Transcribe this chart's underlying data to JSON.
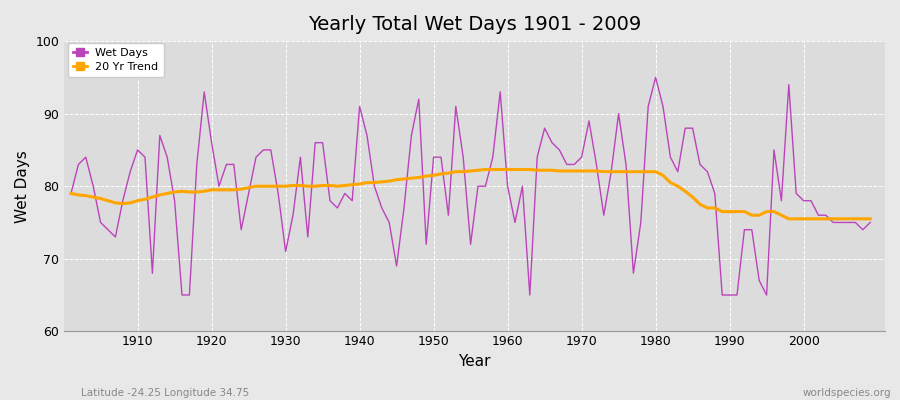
{
  "title": "Yearly Total Wet Days 1901 - 2009",
  "xlabel": "Year",
  "ylabel": "Wet Days",
  "ylim": [
    60,
    100
  ],
  "xlim": [
    1901,
    2009
  ],
  "yticks": [
    60,
    70,
    80,
    90,
    100
  ],
  "xticks": [
    1910,
    1920,
    1930,
    1940,
    1950,
    1960,
    1970,
    1980,
    1990,
    2000
  ],
  "wet_days_color": "#BB44BB",
  "trend_color": "#FFA500",
  "bg_color": "#E8E8E8",
  "plot_bg_color": "#DCDCDC",
  "legend_labels": [
    "Wet Days",
    "20 Yr Trend"
  ],
  "subtitle_left": "Latitude -24.25 Longitude 34.75",
  "subtitle_right": "worldspecies.org",
  "years": [
    1901,
    1902,
    1903,
    1904,
    1905,
    1906,
    1907,
    1908,
    1909,
    1910,
    1911,
    1912,
    1913,
    1914,
    1915,
    1916,
    1917,
    1918,
    1919,
    1920,
    1921,
    1922,
    1923,
    1924,
    1925,
    1926,
    1927,
    1928,
    1929,
    1930,
    1931,
    1932,
    1933,
    1934,
    1935,
    1936,
    1937,
    1938,
    1939,
    1940,
    1941,
    1942,
    1943,
    1944,
    1945,
    1946,
    1947,
    1948,
    1949,
    1950,
    1951,
    1952,
    1953,
    1954,
    1955,
    1956,
    1957,
    1958,
    1959,
    1960,
    1961,
    1962,
    1963,
    1964,
    1965,
    1966,
    1967,
    1968,
    1969,
    1970,
    1971,
    1972,
    1973,
    1974,
    1975,
    1976,
    1977,
    1978,
    1979,
    1980,
    1981,
    1982,
    1983,
    1984,
    1985,
    1986,
    1987,
    1988,
    1989,
    1990,
    1991,
    1992,
    1993,
    1994,
    1995,
    1996,
    1997,
    1998,
    1999,
    2000,
    2001,
    2002,
    2003,
    2004,
    2005,
    2006,
    2007,
    2008,
    2009
  ],
  "wet_days": [
    79,
    83,
    84,
    80,
    75,
    74,
    73,
    78,
    82,
    85,
    84,
    68,
    87,
    84,
    78,
    65,
    65,
    83,
    93,
    86,
    80,
    83,
    83,
    74,
    79,
    84,
    85,
    85,
    79,
    71,
    76,
    84,
    73,
    86,
    86,
    78,
    77,
    79,
    78,
    91,
    87,
    80,
    77,
    75,
    69,
    77,
    87,
    92,
    72,
    84,
    84,
    76,
    91,
    84,
    72,
    80,
    80,
    84,
    93,
    80,
    75,
    80,
    65,
    84,
    88,
    86,
    85,
    83,
    83,
    84,
    89,
    83,
    76,
    82,
    90,
    83,
    68,
    75,
    91,
    95,
    91,
    84,
    82,
    88,
    88,
    83,
    82,
    79,
    65,
    65,
    65,
    74,
    74,
    67,
    65,
    85,
    78,
    94,
    79,
    78,
    78,
    76,
    76,
    75,
    75,
    75,
    75,
    74,
    75
  ],
  "trend": [
    79.0,
    78.8,
    78.7,
    78.5,
    78.3,
    78.0,
    77.7,
    77.6,
    77.7,
    78.0,
    78.2,
    78.5,
    78.8,
    79.0,
    79.2,
    79.3,
    79.2,
    79.2,
    79.3,
    79.5,
    79.5,
    79.5,
    79.5,
    79.6,
    79.8,
    80.0,
    80.0,
    80.0,
    80.0,
    80.0,
    80.1,
    80.1,
    80.0,
    80.0,
    80.1,
    80.1,
    80.0,
    80.1,
    80.2,
    80.3,
    80.5,
    80.5,
    80.6,
    80.7,
    80.9,
    81.0,
    81.1,
    81.2,
    81.4,
    81.5,
    81.7,
    81.8,
    82.0,
    82.0,
    82.1,
    82.2,
    82.3,
    82.3,
    82.3,
    82.3,
    82.3,
    82.3,
    82.3,
    82.2,
    82.2,
    82.2,
    82.1,
    82.1,
    82.1,
    82.1,
    82.1,
    82.1,
    82.0,
    82.0,
    82.0,
    82.0,
    82.0,
    82.0,
    82.0,
    82.0,
    81.5,
    80.5,
    80.0,
    79.3,
    78.5,
    77.5,
    77.0,
    77.0,
    76.5,
    76.5,
    76.5,
    76.5,
    76.0,
    76.0,
    76.5,
    76.5,
    76.0,
    75.5,
    75.5,
    75.5,
    75.5,
    75.5,
    75.5,
    75.5,
    75.5,
    75.5,
    75.5,
    75.5,
    75.5
  ]
}
